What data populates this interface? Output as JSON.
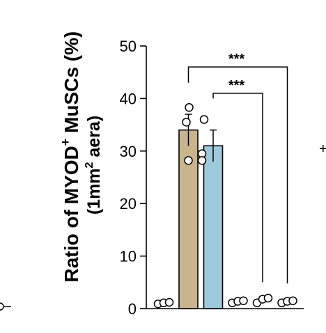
{
  "chart_data": {
    "type": "bar",
    "ylabel": {
      "line1_main": "Ratio of MYOD",
      "line1_sup": "+",
      "line1_tail": " MuSCs (%)",
      "line2_pre": "(1mm",
      "line2_sup": "2",
      "line2_post": " aera)"
    },
    "ylim": [
      0,
      50
    ],
    "yticks": [
      0,
      10,
      20,
      30,
      40,
      50
    ],
    "bars": [
      {
        "value": 0.6,
        "error": 0.0,
        "color": "#ffffff",
        "points": [
          0.5,
          0.7,
          0.8
        ]
      },
      {
        "value": 34.0,
        "error": 3.0,
        "color": "#c9b48e",
        "points": [
          38.3,
          35.5,
          28.2
        ]
      },
      {
        "value": 31.0,
        "error": 3.0,
        "color": "#9ecadb",
        "points": [
          36.0,
          29.5,
          28.2
        ]
      },
      {
        "value": 0.8,
        "error": 0.0,
        "color": "#ffffff",
        "points": [
          0.7,
          1.0,
          1.1
        ]
      },
      {
        "value": 1.0,
        "error": 0.0,
        "color": "#ffffff",
        "points": [
          0.7,
          1.4,
          1.6
        ]
      },
      {
        "value": 0.8,
        "error": 0.0,
        "color": "#ffffff",
        "points": [
          0.7,
          1.0,
          1.1
        ]
      }
    ],
    "significance": [
      {
        "from": 1,
        "to": 5,
        "label": "***",
        "level": 46
      },
      {
        "from": 2,
        "to": 4,
        "label": "***",
        "level": 41
      }
    ]
  }
}
